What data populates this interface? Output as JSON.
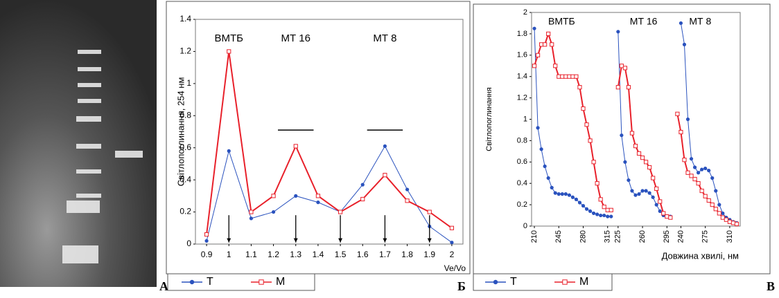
{
  "panel_labels": [
    "А",
    "Б",
    "В"
  ],
  "chart_data": [
    {
      "type": "line",
      "ylabel": "Світлопоглинання, 254 нм",
      "xlabel": "Ve/Vo",
      "x": [
        0.9,
        1,
        1.1,
        1.2,
        1.3,
        1.4,
        1.5,
        1.6,
        1.7,
        1.8,
        1.9,
        2
      ],
      "xlim": [
        0.85,
        2.05
      ],
      "xticks": [
        0.9,
        1,
        1.1,
        1.2,
        1.3,
        1.4,
        1.5,
        1.6,
        1.7,
        1.8,
        1.9,
        2
      ],
      "ylim": [
        0,
        1.4
      ],
      "yticks": [
        0,
        0.2,
        0.4,
        0.6,
        0.8,
        1,
        1.2,
        1.4
      ],
      "series": [
        {
          "name": "T",
          "color": "#2a52be",
          "marker": "circle",
          "values": [
            0.02,
            0.58,
            0.16,
            0.2,
            0.3,
            0.26,
            0.2,
            0.37,
            0.61,
            0.34,
            0.11,
            0.01
          ]
        },
        {
          "name": "M",
          "color": "#e8202a",
          "marker": "square",
          "values": [
            0.06,
            1.2,
            0.2,
            0.3,
            0.61,
            0.3,
            0.2,
            0.28,
            0.43,
            0.27,
            0.2,
            0.1
          ]
        }
      ],
      "annotations": [
        {
          "text": "ВМТБ",
          "x": 1,
          "y": 1.28
        },
        {
          "text": "МТ 16",
          "x": 1.3,
          "y": 1.28
        },
        {
          "text": "МТ 8",
          "x": 1.7,
          "y": 1.28
        }
      ],
      "arrows_x": [
        1,
        1.3,
        1.5,
        1.7,
        1.9
      ],
      "bars": [
        {
          "x": [
            1.22,
            1.38
          ],
          "y": 0.71
        },
        {
          "x": [
            1.62,
            1.78
          ],
          "y": 0.71
        }
      ]
    },
    {
      "type": "line",
      "ylabel": "Світлопоглинання",
      "xlabel": "Довжина хвилі, нм",
      "ylim": [
        0,
        2
      ],
      "yticks": [
        0,
        0.2,
        0.4,
        0.6,
        0.8,
        1,
        1.2,
        1.4,
        1.6,
        1.8,
        2
      ],
      "series": [
        {
          "name": "T",
          "color": "#2a52be",
          "marker": "circle"
        },
        {
          "name": "M",
          "color": "#e8202a",
          "marker": "square"
        }
      ],
      "segments": [
        {
          "title": "ВМТБ",
          "xlim": [
            206,
            323
          ],
          "xticks": [
            210,
            245,
            280,
            315
          ],
          "data": [
            {
              "x": [
                210,
                215,
                220,
                225,
                230,
                235,
                240,
                245,
                250,
                255,
                260,
                265,
                270,
                275,
                280,
                285,
                290,
                295,
                300,
                305,
                310,
                315,
                320
              ],
              "values": [
                1.85,
                0.92,
                0.72,
                0.56,
                0.45,
                0.36,
                0.31,
                0.3,
                0.3,
                0.3,
                0.29,
                0.27,
                0.25,
                0.22,
                0.19,
                0.16,
                0.14,
                0.12,
                0.11,
                0.1,
                0.1,
                0.09,
                0.09
              ]
            },
            {
              "x": [
                210,
                215,
                220,
                225,
                230,
                235,
                240,
                245,
                250,
                255,
                260,
                265,
                270,
                275,
                280,
                285,
                290,
                295,
                300,
                305,
                310,
                315,
                320
              ],
              "values": [
                1.5,
                1.6,
                1.7,
                1.7,
                1.8,
                1.7,
                1.5,
                1.4,
                1.4,
                1.4,
                1.4,
                1.4,
                1.4,
                1.3,
                1.1,
                0.95,
                0.8,
                0.6,
                0.4,
                0.25,
                0.18,
                0.15,
                0.15
              ]
            }
          ]
        },
        {
          "title": "МТ 16",
          "xlim": [
            218,
            303
          ],
          "xticks": [
            225,
            260,
            295
          ],
          "data": [
            {
              "x": [
                225,
                230,
                235,
                240,
                245,
                250,
                255,
                260,
                265,
                270,
                275,
                280,
                285,
                290,
                295,
                300
              ],
              "values": [
                1.82,
                0.85,
                0.6,
                0.43,
                0.33,
                0.29,
                0.3,
                0.33,
                0.33,
                0.31,
                0.27,
                0.2,
                0.14,
                0.1,
                0.09,
                0.09
              ]
            },
            {
              "x": [
                225,
                230,
                235,
                240,
                245,
                250,
                255,
                260,
                265,
                270,
                275,
                280,
                285,
                290,
                295,
                300
              ],
              "values": [
                1.3,
                1.5,
                1.48,
                1.3,
                0.87,
                0.75,
                0.68,
                0.64,
                0.6,
                0.55,
                0.45,
                0.35,
                0.23,
                0.12,
                0.09,
                0.08
              ]
            }
          ]
        },
        {
          "title": "МТ 8",
          "xlim": [
            228,
            325
          ],
          "xticks": [
            240,
            275,
            310
          ],
          "data": [
            {
              "x": [
                240,
                245,
                250,
                255,
                260,
                265,
                270,
                275,
                280,
                285,
                290,
                295,
                300,
                305,
                310,
                315,
                320
              ],
              "values": [
                1.9,
                1.7,
                1.0,
                0.63,
                0.55,
                0.5,
                0.53,
                0.54,
                0.52,
                0.45,
                0.33,
                0.2,
                0.12,
                0.08,
                0.06,
                0.04,
                0.03
              ]
            },
            {
              "x": [
                235,
                240,
                245,
                250,
                255,
                260,
                265,
                270,
                275,
                280,
                285,
                290,
                295,
                300,
                305,
                310,
                315,
                320
              ],
              "values": [
                1.05,
                0.88,
                0.62,
                0.5,
                0.47,
                0.44,
                0.4,
                0.33,
                0.28,
                0.24,
                0.2,
                0.16,
                0.12,
                0.08,
                0.06,
                0.04,
                0.03,
                0.02
              ]
            }
          ]
        }
      ]
    }
  ]
}
